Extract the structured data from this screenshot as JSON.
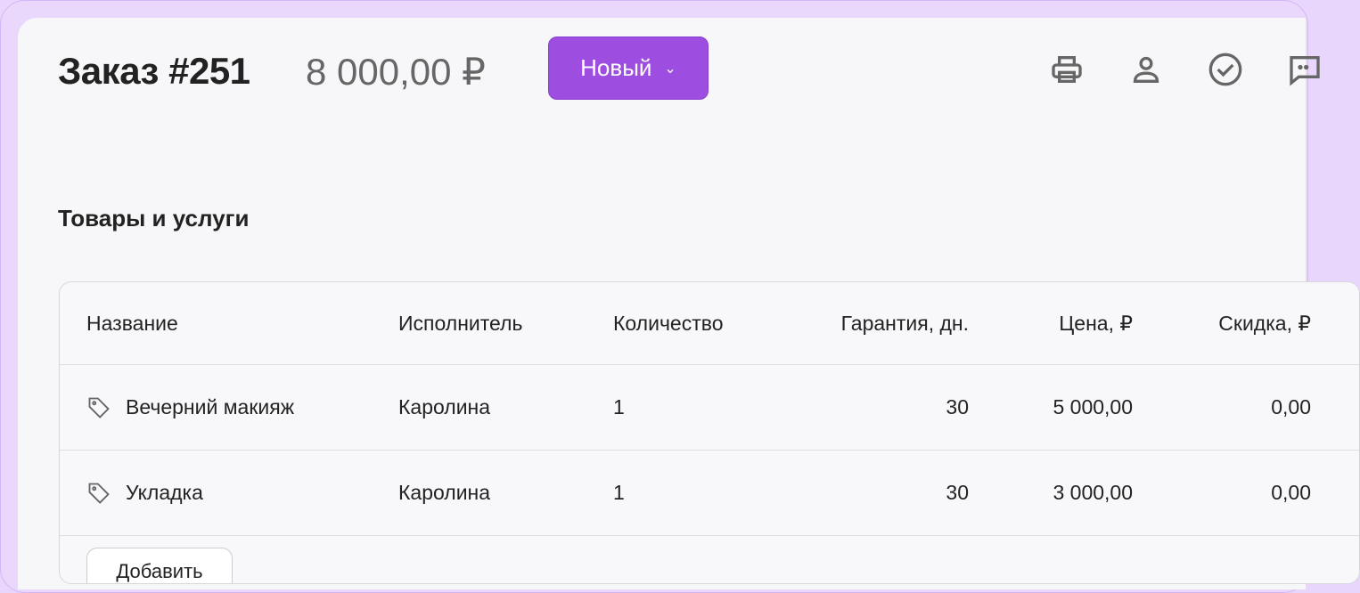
{
  "header": {
    "title": "Заказ #251",
    "amount": "8 000,00 ₽",
    "status": "Новый",
    "icons": [
      "printer-icon",
      "user-icon",
      "check-circle-icon",
      "comment-icon"
    ]
  },
  "section_title": "Товары и услуги",
  "table": {
    "columns": [
      "Название",
      "Исполнитель",
      "Количество",
      "Гарантия, дн.",
      "Цена, ₽",
      "Скидка, ₽"
    ],
    "rows": [
      {
        "name": "Вечерний макияж",
        "performer": "Каролина",
        "qty": "1",
        "warranty": "30",
        "price": "5 000,00",
        "discount": "0,00"
      },
      {
        "name": "Укладка",
        "performer": "Каролина",
        "qty": "1",
        "warranty": "30",
        "price": "3 000,00",
        "discount": "0,00"
      }
    ],
    "add_label": "Добавить"
  },
  "colors": {
    "accent": "#9d4ddf",
    "frame": "#e9d6fc"
  }
}
